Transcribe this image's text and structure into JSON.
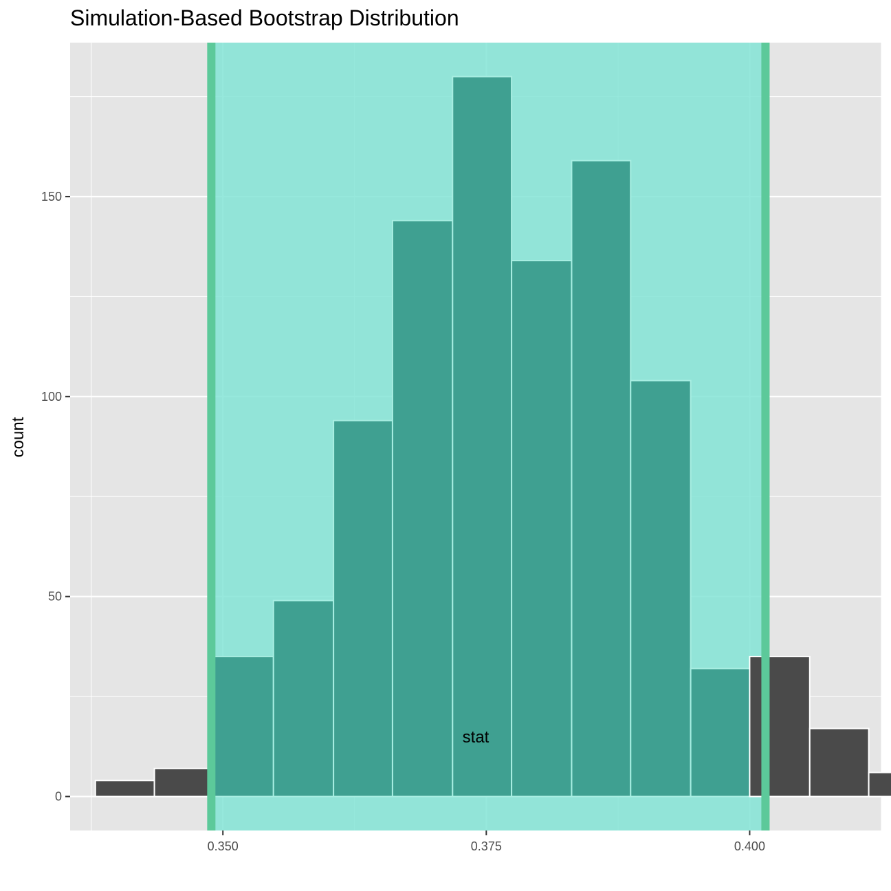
{
  "chart_data": {
    "type": "bar",
    "title": "Simulation-Based Bootstrap Distribution",
    "xlabel": "stat",
    "ylabel": "count",
    "xlim": [
      0.3355,
      0.4125
    ],
    "ylim": [
      -8.5,
      188.5
    ],
    "x_ticks": [
      {
        "value": 0.35,
        "label": "0.350"
      },
      {
        "value": 0.375,
        "label": "0.375"
      },
      {
        "value": 0.4,
        "label": "0.400"
      }
    ],
    "y_ticks": [
      {
        "value": 0,
        "label": "0"
      },
      {
        "value": 50,
        "label": "50"
      },
      {
        "value": 100,
        "label": "100"
      },
      {
        "value": 150,
        "label": "150"
      }
    ],
    "x_minor_ticks": [
      0.3375,
      0.3625,
      0.3875,
      0.4125
    ],
    "y_minor_ticks": [
      25,
      75,
      125,
      175
    ],
    "bins": [
      {
        "x0": 0.3379,
        "x1": 0.3435,
        "count": 4
      },
      {
        "x0": 0.3435,
        "x1": 0.3492,
        "count": 7
      },
      {
        "x0": 0.3492,
        "x1": 0.3548,
        "count": 35
      },
      {
        "x0": 0.3548,
        "x1": 0.3605,
        "count": 49
      },
      {
        "x0": 0.3605,
        "x1": 0.3661,
        "count": 94
      },
      {
        "x0": 0.3661,
        "x1": 0.3718,
        "count": 144
      },
      {
        "x0": 0.3718,
        "x1": 0.3774,
        "count": 180
      },
      {
        "x0": 0.3774,
        "x1": 0.3831,
        "count": 134
      },
      {
        "x0": 0.3831,
        "x1": 0.3887,
        "count": 159
      },
      {
        "x0": 0.3887,
        "x1": 0.3944,
        "count": 104
      },
      {
        "x0": 0.3944,
        "x1": 0.4,
        "count": 32
      },
      {
        "x0": 0.4,
        "x1": 0.4057,
        "count": 35
      },
      {
        "x0": 0.4057,
        "x1": 0.4113,
        "count": 17
      },
      {
        "x0": 0.4113,
        "x1": 0.417,
        "count": 6
      }
    ],
    "confidence_interval": {
      "lower": 0.3489,
      "upper": 0.4015
    },
    "grid": true,
    "colors": {
      "panel_background": "#e5e5e5",
      "grid": "#ffffff",
      "bar_fill": "#4a4a4a",
      "bar_outline": "#ffffff",
      "ci_shade": "#7fe3d4",
      "ci_bar_fill": "#3fa091",
      "ci_bar_outline": "#a8eee2",
      "ci_line": "#5cc99a"
    }
  }
}
